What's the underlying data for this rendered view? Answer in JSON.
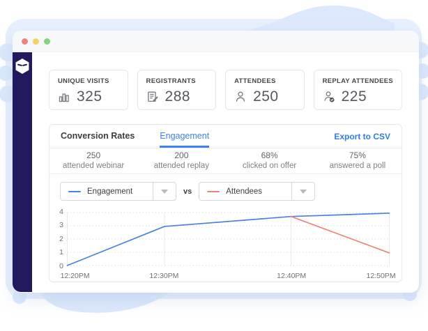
{
  "colors": {
    "accent_blue": "#3b82f6",
    "export_blue": "#2f7ceb",
    "line_blue": "#4a80e2",
    "line_red": "#ef837b",
    "sidebar_navy": "#211a5e",
    "blob_light_blue": "#dce9fc"
  },
  "browser_window": {
    "traffic_lights": [
      "#f3827d",
      "#f6d263",
      "#85d283"
    ]
  },
  "sidebar": {
    "logo": "ninja-hexagon-logo"
  },
  "stat_cards": [
    {
      "label": "UNIQUE VISITS",
      "value": "325",
      "icon": "bar-chart-icon"
    },
    {
      "label": "REGISTRANTS",
      "value": "288",
      "icon": "registrants-list-icon"
    },
    {
      "label": "ATTENDEES",
      "value": "250",
      "icon": "person-icon"
    },
    {
      "label": "REPLAY ATTENDEES",
      "value": "225",
      "icon": "person-check-icon"
    }
  ],
  "panel": {
    "tabs": [
      {
        "label": "Conversion Rates",
        "active": false
      },
      {
        "label": "Engagement",
        "active": true
      }
    ],
    "export_label": "Export to CSV",
    "stats": [
      {
        "value": "250",
        "label": "attended webinar"
      },
      {
        "value": "200",
        "label": "attended replay"
      },
      {
        "value": "68%",
        "label": "clicked on offer"
      },
      {
        "value": "75%",
        "label": "answered a poll"
      }
    ],
    "selectors": {
      "vs_label": "vs",
      "series": [
        {
          "label": "Engagement",
          "color": "#4a80e2"
        },
        {
          "label": "Attendees",
          "color": "#ef837b"
        }
      ]
    }
  },
  "chart_data": {
    "type": "line",
    "title": "",
    "xlabel": "",
    "ylabel": "",
    "x_labels": [
      "12:20PM",
      "12:30PM",
      "12:40PM",
      "12:50PM"
    ],
    "x_positions": [
      0,
      0.302,
      0.695,
      1
    ],
    "ylim": [
      0,
      4
    ],
    "yticks": [
      0,
      1,
      2,
      3,
      4
    ],
    "grid": {
      "horizontal": "dotted",
      "vertical": "solid"
    },
    "legend_position": "none",
    "series": [
      {
        "name": "Engagement",
        "color": "#4a80e2",
        "points": [
          [
            "12:20PM",
            0
          ],
          [
            "12:30PM",
            2.95
          ],
          [
            "12:40PM",
            3.7
          ],
          [
            "12:50PM",
            3.95
          ]
        ]
      },
      {
        "name": "Attendees",
        "color": "#ef837b",
        "points": [
          [
            "12:40PM",
            3.7
          ],
          [
            "12:50PM",
            0.95
          ]
        ]
      }
    ]
  }
}
